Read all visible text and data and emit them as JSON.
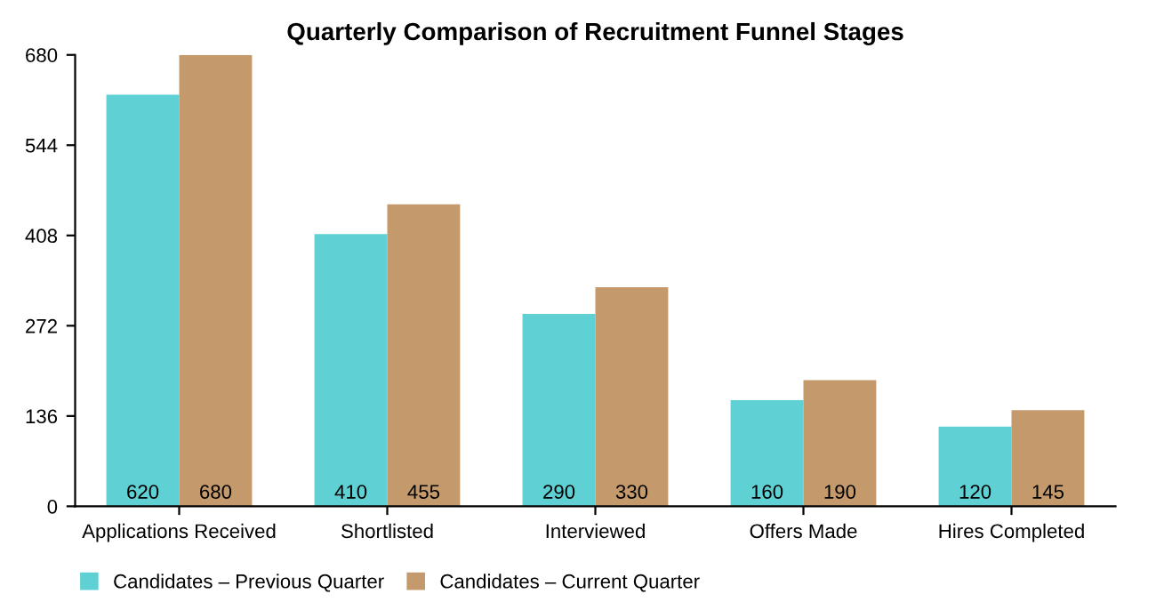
{
  "chart_data": {
    "type": "bar",
    "title": "Quarterly Comparison of Recruitment Funnel Stages",
    "categories": [
      "Applications Received",
      "Shortlisted",
      "Interviewed",
      "Offers Made",
      "Hires Completed"
    ],
    "series": [
      {
        "name": "Candidates – Previous Quarter",
        "color": "#5fd0d3",
        "values": [
          620,
          410,
          290,
          160,
          120
        ]
      },
      {
        "name": "Candidates – Current Quarter",
        "color": "#c49a6c",
        "values": [
          680,
          455,
          330,
          190,
          145
        ]
      }
    ],
    "ylim": [
      0,
      680
    ],
    "yticks": [
      0,
      136,
      272,
      408,
      544,
      680
    ],
    "grid": false,
    "legend": "bottom left",
    "data_labels": true
  }
}
